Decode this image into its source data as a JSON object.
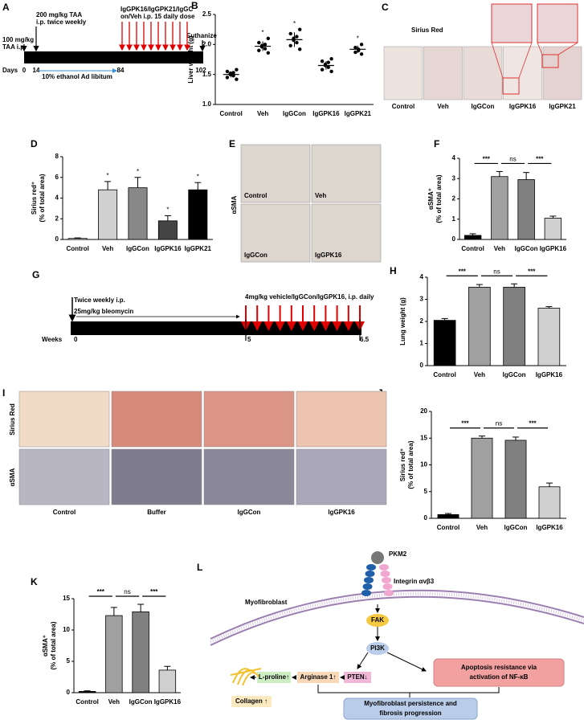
{
  "chart_data": [
    {
      "panel": "B",
      "type": "dot",
      "yaxis_label": [
        "Liver weight (g)"
      ],
      "categories": [
        "Control",
        "Veh",
        "IgGCon",
        "IgGPK16",
        "IgGPK21"
      ],
      "values": [
        1.5,
        1.97,
        2.08,
        1.65,
        1.92
      ],
      "errors": [
        0.05,
        0.08,
        0.12,
        0.07,
        0.06
      ],
      "points": [
        [
          1.42,
          1.45,
          1.48,
          1.5,
          1.52,
          1.53,
          1.55,
          1.58
        ],
        [
          1.86,
          1.9,
          1.93,
          1.96,
          1.98,
          2.0,
          2.03,
          2.1
        ],
        [
          1.92,
          1.98,
          2.03,
          2.07,
          2.1,
          2.13,
          2.18,
          2.25
        ],
        [
          1.55,
          1.58,
          1.62,
          1.65,
          1.67,
          1.7,
          1.72,
          1.76
        ],
        [
          1.84,
          1.87,
          1.9,
          1.92,
          1.95,
          2.0
        ]
      ],
      "color": "#000000",
      "significance": [
        null,
        "*",
        "*",
        null,
        "*"
      ],
      "ylim": [
        1.0,
        2.5
      ],
      "yticks": [
        {
          "value": 1.0,
          "label": "1.0"
        },
        {
          "value": 1.5,
          "label": "1.5"
        },
        {
          "value": 2.0,
          "label": "2.0"
        },
        {
          "value": 2.5,
          "label": "2.5"
        }
      ]
    },
    {
      "panel": "D",
      "type": "bar",
      "yaxis_label": [
        "Sirius red⁺",
        "(% of total area)"
      ],
      "categories": [
        "Control",
        "Veh",
        "IgGCon",
        "IgGPK16",
        "IgGPK21"
      ],
      "values": [
        0.1,
        4.8,
        5.0,
        1.8,
        4.8
      ],
      "errors": [
        0.05,
        0.8,
        1.0,
        0.5,
        0.7
      ],
      "colors": [
        "#ffffff",
        "#d0d0d0",
        "#888888",
        "#444444",
        "#000000"
      ],
      "significance": [
        null,
        "*",
        "*",
        "*",
        "*"
      ],
      "ylim": [
        0,
        8
      ],
      "yticks": [
        0,
        2,
        4,
        6,
        8
      ]
    },
    {
      "panel": "F",
      "type": "bar",
      "yaxis_label": [
        "αSMA⁺",
        "(% of total area)"
      ],
      "categories": [
        "Control",
        "Veh",
        "IgGCon",
        "IgGPK16"
      ],
      "values": [
        0.2,
        3.1,
        2.95,
        1.05
      ],
      "errors": [
        0.08,
        0.25,
        0.35,
        0.1
      ],
      "colors": [
        "#000000",
        "#a0a0a0",
        "#808080",
        "#d0d0d0"
      ],
      "comparisons": [
        {
          "label": "***",
          "groups": [
            "Control",
            "Veh"
          ]
        },
        {
          "label": "ns",
          "groups": [
            "Veh",
            "IgGCon"
          ]
        },
        {
          "label": "***",
          "groups": [
            "IgGCon",
            "IgGPK16"
          ]
        }
      ],
      "ylim": [
        0,
        4
      ],
      "yticks": [
        0,
        1,
        2,
        3,
        4
      ]
    },
    {
      "panel": "H",
      "type": "bar",
      "yaxis_label": [
        "Lung weight (g)"
      ],
      "categories": [
        "Control",
        "Veh",
        "IgGCon",
        "IgGPK16"
      ],
      "values": [
        2.05,
        3.55,
        3.55,
        2.6
      ],
      "errors": [
        0.08,
        0.12,
        0.15,
        0.07
      ],
      "colors": [
        "#000000",
        "#a0a0a0",
        "#808080",
        "#d0d0d0"
      ],
      "comparisons": [
        {
          "label": "***",
          "groups": [
            "Control",
            "Veh"
          ]
        },
        {
          "label": "ns",
          "groups": [
            "Veh",
            "IgGCon"
          ]
        },
        {
          "label": "***",
          "groups": [
            "IgGCon",
            "IgGPK16"
          ]
        }
      ],
      "ylim": [
        0,
        4
      ],
      "yticks": [
        0,
        1,
        2,
        3,
        4
      ]
    },
    {
      "panel": "J",
      "type": "bar",
      "yaxis_label": [
        "Sirius red⁺",
        "(% of total area)"
      ],
      "categories": [
        "Control",
        "Veh",
        "IgGCon",
        "IgGPK16"
      ],
      "values": [
        0.7,
        15.0,
        14.6,
        5.9
      ],
      "errors": [
        0.2,
        0.4,
        0.6,
        0.7
      ],
      "colors": [
        "#000000",
        "#a0a0a0",
        "#808080",
        "#d0d0d0"
      ],
      "comparisons": [
        {
          "label": "***",
          "groups": [
            "Control",
            "Veh"
          ]
        },
        {
          "label": "ns",
          "groups": [
            "Veh",
            "IgGCon"
          ]
        },
        {
          "label": "***",
          "groups": [
            "IgGCon",
            "IgGPK16"
          ]
        }
      ],
      "ylim": [
        0,
        20
      ],
      "yticks": [
        0,
        5,
        10,
        15,
        20
      ]
    },
    {
      "panel": "K",
      "type": "bar",
      "yaxis_label": [
        "αSMA⁺",
        "(% of total area)"
      ],
      "categories": [
        "Control",
        "Veh",
        "IgGCon",
        "IgGPK16"
      ],
      "values": [
        0.2,
        12.3,
        12.9,
        3.6
      ],
      "errors": [
        0.1,
        1.3,
        1.2,
        0.6
      ],
      "colors": [
        "#000000",
        "#a0a0a0",
        "#808080",
        "#d0d0d0"
      ],
      "comparisons": [
        {
          "label": "***",
          "groups": [
            "Control",
            "Veh"
          ]
        },
        {
          "label": "ns",
          "groups": [
            "Veh",
            "IgGCon"
          ]
        },
        {
          "label": "***",
          "groups": [
            "IgGCon",
            "IgGPK16"
          ]
        }
      ],
      "ylim": [
        0,
        15
      ],
      "yticks": [
        0,
        5,
        10,
        15
      ]
    }
  ],
  "timeline_a": {
    "panel": "A",
    "dose1": [
      "100 mg/kg",
      "TAA i.p."
    ],
    "dose2": [
      "200 mg/kg TAA",
      "i.p. twice weekly"
    ],
    "treatment": [
      "IgGPK16/IgGPK21/IgGC",
      "on/Veh i.p. 15 daily dose"
    ],
    "end": "Euthanize",
    "axis": "Days",
    "ticks": [
      "0",
      "14",
      "84",
      "102"
    ],
    "ethanol": "10% ethanol Ad libitum"
  },
  "images_c": {
    "panel": "C",
    "stain": "Sirius Red",
    "labels": [
      "Control",
      "Veh",
      "IgGCon",
      "IgGPK16",
      "IgGPK21"
    ]
  },
  "images_e": {
    "panel": "E",
    "stain": "αSMA",
    "labels": [
      "Control",
      "Veh",
      "IgGCon",
      "IgGPK16"
    ]
  },
  "timeline_g": {
    "panel": "G",
    "schedule": [
      "Twice weekly i.p.",
      "25mg/kg bleomycin"
    ],
    "treatment": "4mg/kg vehicle/IgGCon/IgGPK16, i.p. daily",
    "axis": "Weeks",
    "ticks": [
      "0",
      "5",
      "6.5"
    ]
  },
  "images_i": {
    "panel": "I",
    "rows": [
      "Sirius Red",
      "αSMA"
    ],
    "labels": [
      "Control",
      "Buffer",
      "IgGCon",
      "IgGPK16"
    ]
  },
  "diagram_l": {
    "panel": "L",
    "cell": "Myofibroblast",
    "ligand": "PKM2",
    "receptor": "Integrin αvβ3",
    "kinase1": "FAK",
    "kinase2": "PI3K",
    "proline": "L-proline↑",
    "arginase": "Arginase 1↑",
    "pten": "PTEN↓",
    "collagen": "Collagen ↑",
    "apoptosis": [
      "Apoptosis resistance via",
      "activation of NF-κB"
    ],
    "outcome": [
      "Myofibroblast persistence and",
      "fibrosis progression"
    ]
  }
}
